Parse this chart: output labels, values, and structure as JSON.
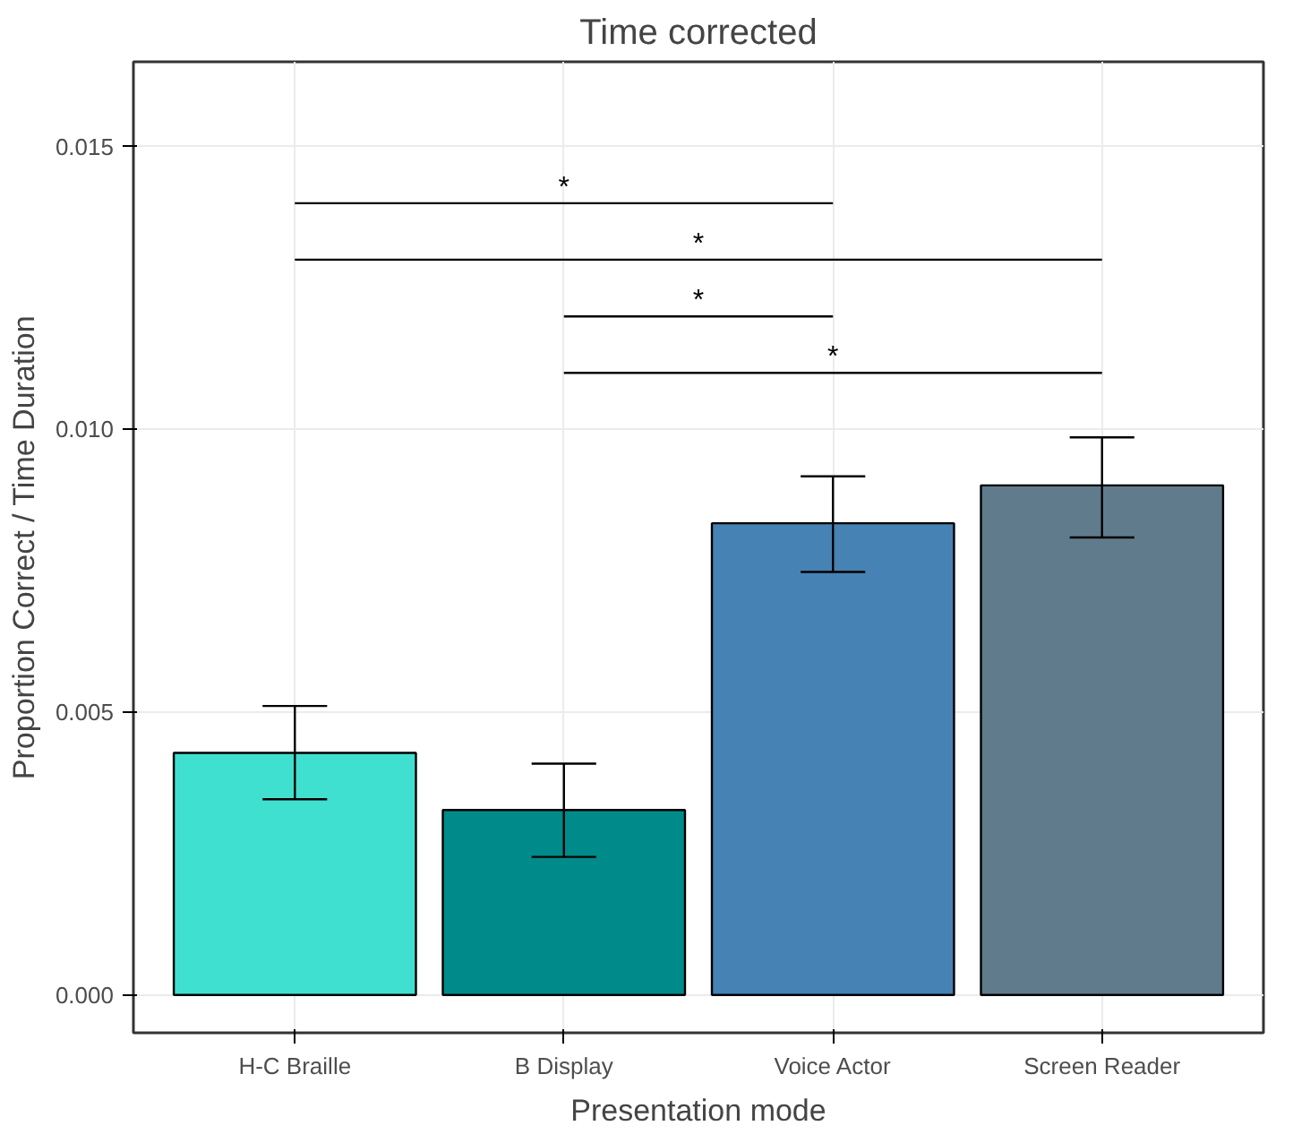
{
  "chart_data": {
    "type": "bar",
    "title": "Time corrected",
    "xlabel": "Presentation mode",
    "ylabel": "Proportion Correct / Time Duration",
    "categories": [
      "H-C Braille",
      "B Display",
      "Voice Actor",
      "Screen Reader"
    ],
    "values": [
      0.00428,
      0.00327,
      0.00834,
      0.00901
    ],
    "colors": [
      "#40e0d0",
      "#008b8b",
      "#4682b4",
      "#607b8b"
    ],
    "errors": [
      [
        0.00346,
        0.00511
      ],
      [
        0.00244,
        0.00409
      ],
      [
        0.00748,
        0.00917
      ],
      [
        0.00809,
        0.00986
      ]
    ],
    "ylim": [
      -0.00067,
      0.0165
    ],
    "yticks": [
      {
        "value": 0,
        "label": "0.000"
      },
      {
        "value": 0.005,
        "label": "0.005"
      },
      {
        "value": 0.01,
        "label": "0.010"
      },
      {
        "value": 0.015,
        "label": "0.015"
      }
    ],
    "annotations": [
      "*",
      "*",
      "*",
      "*"
    ],
    "grid": true
  }
}
